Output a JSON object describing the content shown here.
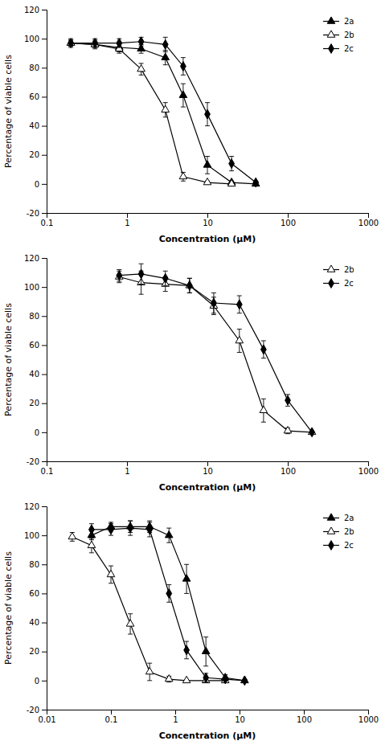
{
  "chart_data": [
    {
      "type": "line",
      "xlabel": "Concentration (μM)",
      "ylabel": "Percentage of viable cells",
      "log": "x",
      "xlim": [
        0.1,
        1000
      ],
      "xticks": [
        0.1,
        1,
        10,
        100,
        1000
      ],
      "ylim": [
        -20,
        120
      ],
      "yticks": [
        -20,
        0,
        20,
        40,
        60,
        80,
        100,
        120
      ],
      "legend": "upper right",
      "series": [
        {
          "name": "2a",
          "color": "#000000",
          "marker": "triangle",
          "x": [
            0.2,
            0.4,
            0.8,
            1.5,
            3.0,
            5.0,
            10.0,
            20.0,
            40.0
          ],
          "values": [
            97,
            96,
            94,
            93,
            87,
            61,
            13,
            1,
            0
          ],
          "errors": [
            2,
            2,
            3,
            3,
            5,
            8,
            6,
            1,
            0.5
          ]
        },
        {
          "name": "2b",
          "color": "#000000",
          "marker": "triangle-open",
          "x": [
            0.2,
            0.4,
            0.8,
            1.5,
            3.0,
            5.0,
            10.0,
            20.0
          ],
          "values": [
            97,
            96,
            93,
            79,
            51,
            5,
            1,
            0
          ],
          "errors": [
            2,
            3,
            3,
            4,
            5,
            3,
            1,
            0.5
          ]
        },
        {
          "name": "2c",
          "color": "#000000",
          "marker": "diamond",
          "x": [
            0.2,
            0.4,
            0.8,
            1.5,
            3.0,
            5.0,
            10.0,
            20.0,
            40.0
          ],
          "values": [
            97,
            97,
            97,
            98,
            96,
            81,
            48,
            14,
            1
          ],
          "errors": [
            3,
            3,
            3,
            3,
            5,
            6,
            8,
            5,
            1
          ]
        }
      ]
    },
    {
      "type": "line",
      "xlabel": "Concentration (μM)",
      "ylabel": "Percentage of viable cells",
      "log": "x",
      "xlim": [
        0.1,
        1000
      ],
      "xticks": [
        0.1,
        1,
        10,
        100,
        1000
      ],
      "ylim": [
        -20,
        120
      ],
      "yticks": [
        -20,
        0,
        20,
        40,
        60,
        80,
        100,
        120
      ],
      "legend": "upper right",
      "series": [
        {
          "name": "2b",
          "color": "#000000",
          "marker": "triangle-open",
          "x": [
            0.8,
            1.5,
            3.0,
            6.0,
            12.0,
            25.0,
            50.0,
            100.0,
            200.0
          ],
          "values": [
            107,
            103,
            102,
            101,
            87,
            63,
            15,
            1,
            0
          ],
          "errors": [
            4,
            8,
            5,
            5,
            6,
            8,
            8,
            2,
            0.5
          ]
        },
        {
          "name": "2c",
          "color": "#000000",
          "marker": "diamond",
          "x": [
            0.8,
            1.5,
            3.0,
            6.0,
            12.0,
            25.0,
            50.0,
            100.0,
            200.0
          ],
          "values": [
            108,
            109,
            106,
            101,
            89,
            88,
            57,
            22,
            0
          ],
          "errors": [
            4,
            7,
            5,
            5,
            7,
            6,
            6,
            4,
            0.5
          ]
        }
      ]
    },
    {
      "type": "line",
      "xlabel": "Concentration (μM)",
      "ylabel": "Percentage of viable cells",
      "log": "x",
      "xlim": [
        0.01,
        1000
      ],
      "xticks": [
        0.01,
        0.1,
        1,
        10,
        100,
        1000
      ],
      "ylim": [
        -20,
        120
      ],
      "yticks": [
        -20,
        0,
        20,
        40,
        60,
        80,
        100,
        120
      ],
      "legend": "upper right",
      "series": [
        {
          "name": "2a",
          "color": "#000000",
          "marker": "triangle",
          "x": [
            0.05,
            0.1,
            0.2,
            0.4,
            0.8,
            1.5,
            3.0,
            6.0,
            12.0
          ],
          "values": [
            100,
            106,
            106,
            106,
            100,
            70,
            20,
            2,
            0
          ],
          "errors": [
            3,
            3,
            4,
            4,
            5,
            10,
            10,
            2,
            0.5
          ]
        },
        {
          "name": "2b",
          "color": "#000000",
          "marker": "triangle-open",
          "x": [
            0.025,
            0.05,
            0.1,
            0.2,
            0.4,
            0.8,
            1.5,
            3.0,
            6.0
          ],
          "values": [
            99,
            93,
            73,
            39,
            6,
            1,
            0,
            0,
            0
          ],
          "errors": [
            3,
            5,
            6,
            7,
            6,
            2,
            0.5,
            0.5,
            0.5
          ]
        },
        {
          "name": "2c",
          "color": "#000000",
          "marker": "diamond",
          "x": [
            0.05,
            0.1,
            0.2,
            0.4,
            0.8,
            1.5,
            3.0,
            6.0,
            12.0
          ],
          "values": [
            104,
            104,
            105,
            104,
            60,
            21,
            2,
            1,
            0
          ],
          "errors": [
            4,
            4,
            5,
            5,
            6,
            6,
            3,
            1,
            0.5
          ]
        }
      ]
    }
  ]
}
